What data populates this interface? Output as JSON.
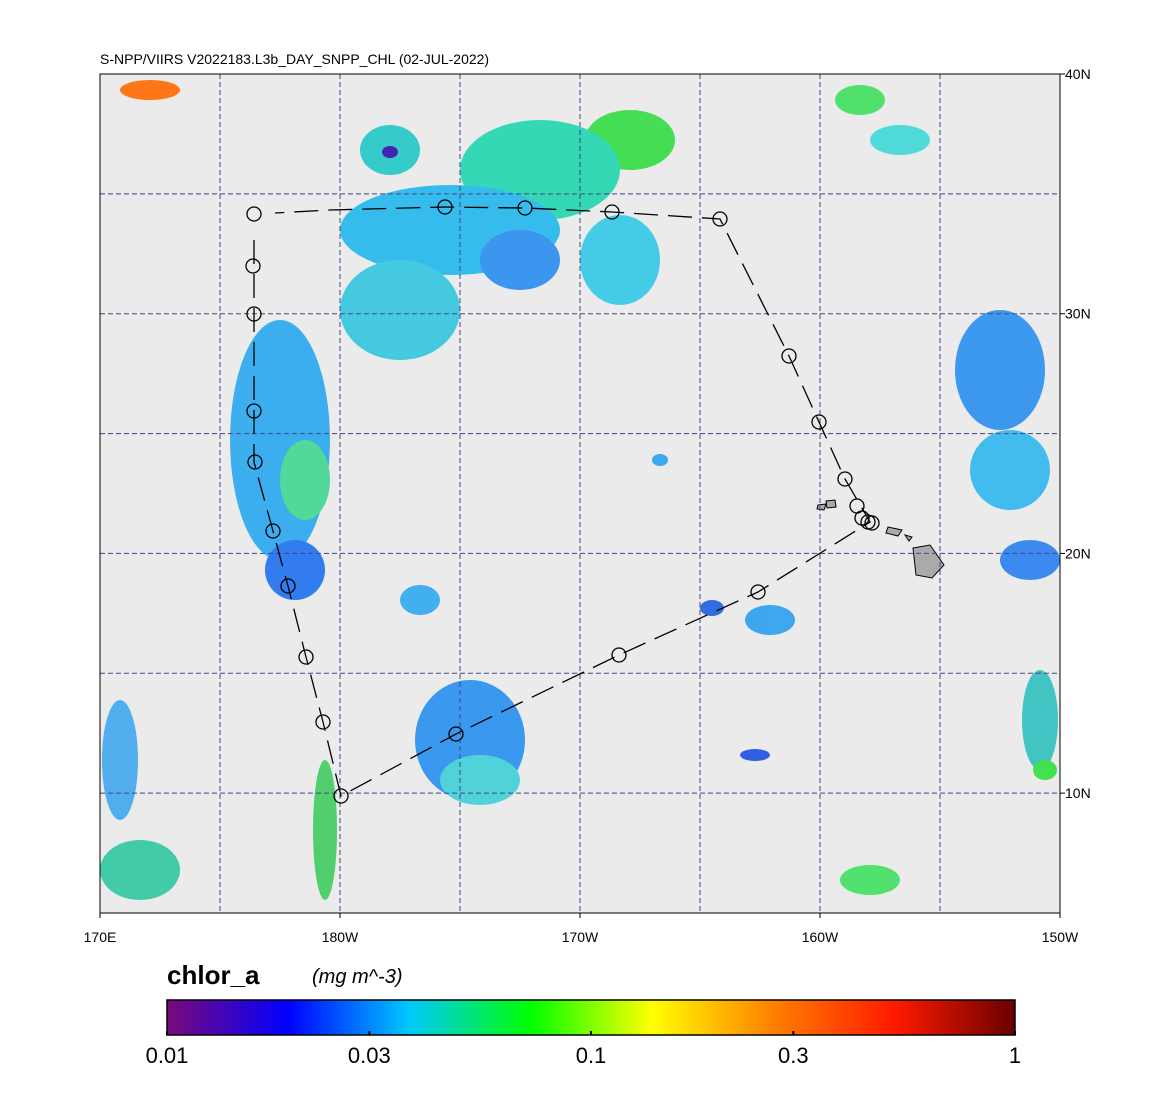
{
  "map": {
    "title": "S-NPP/VIIRS V2022183.L3b_DAY_SNPP_CHL (02-JUL-2022)",
    "xlim": [
      170,
      210
    ],
    "ylim": [
      5,
      40
    ],
    "xticks": [
      {
        "value": 170,
        "label": "170E"
      },
      {
        "value": 180,
        "label": "180W"
      },
      {
        "value": 190,
        "label": "170W"
      },
      {
        "value": 200,
        "label": "160W"
      },
      {
        "value": 210,
        "label": "150W"
      }
    ],
    "yticks": [
      {
        "value": 10,
        "label": "10N"
      },
      {
        "value": 20,
        "label": "20N"
      },
      {
        "value": 30,
        "label": "30N"
      },
      {
        "value": 40,
        "label": "40N"
      }
    ],
    "xgrid": [
      175,
      180,
      185,
      190,
      195,
      200,
      205
    ],
    "ygrid": [
      10,
      15,
      20,
      25,
      30,
      35
    ],
    "colorbar": {
      "variable": "chlor_a",
      "units": "(mg m^-3)",
      "log": true,
      "lim": [
        0.01,
        1
      ],
      "ticks": [
        0.01,
        0.03,
        0.1,
        0.3,
        1
      ],
      "colors": [
        "#7a0a7a",
        "#0000ff",
        "#00c8ff",
        "#00ff00",
        "#ffff00",
        "#ff8000",
        "#ff1a00",
        "#6a0000"
      ]
    }
  }
}
